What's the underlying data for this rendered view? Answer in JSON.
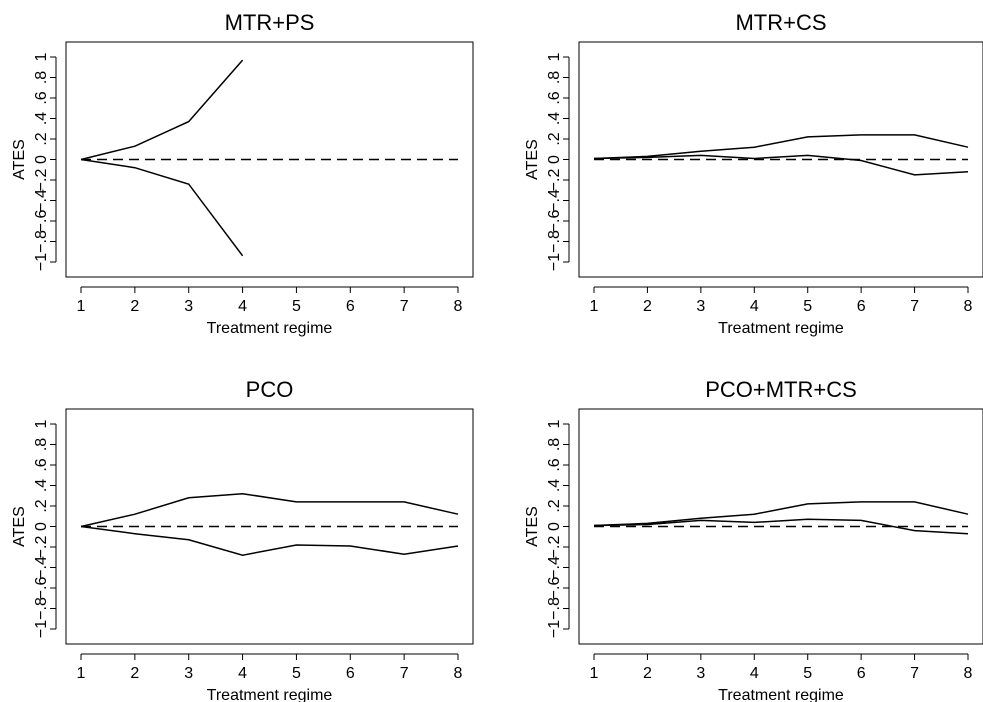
{
  "chart_data": [
    {
      "type": "line",
      "title": "MTR+PS",
      "xlabel": "Treatment regime",
      "ylabel": "ATES",
      "xlim": [
        1,
        8
      ],
      "ylim": [
        -1,
        1
      ],
      "x_ticks": [
        "1",
        "2",
        "3",
        "4",
        "5",
        "6",
        "7",
        "8"
      ],
      "y_ticks": [
        "−1",
        "−.8",
        "−.6",
        "−.4",
        "−.2",
        "0",
        ".2",
        ".4",
        ".6",
        ".8",
        "1"
      ],
      "grid": false,
      "series": [
        {
          "style": "solid",
          "x": [
            1,
            2,
            3,
            4
          ],
          "values": [
            0,
            0.13,
            0.37,
            0.97
          ]
        },
        {
          "style": "solid",
          "x": [
            1,
            2,
            3,
            4
          ],
          "values": [
            0,
            -0.08,
            -0.24,
            -0.94
          ]
        },
        {
          "style": "dashed",
          "x": [
            1,
            8
          ],
          "values": [
            0,
            0
          ]
        }
      ]
    },
    {
      "type": "line",
      "title": "MTR+CS",
      "xlabel": "Treatment regime",
      "ylabel": "ATES",
      "xlim": [
        1,
        8
      ],
      "ylim": [
        -1,
        1
      ],
      "x_ticks": [
        "1",
        "2",
        "3",
        "4",
        "5",
        "6",
        "7",
        "8"
      ],
      "y_ticks": [
        "−1",
        "−.8",
        "−.6",
        "−.4",
        "−.2",
        "0",
        ".2",
        ".4",
        ".6",
        ".8",
        "1"
      ],
      "grid": false,
      "series": [
        {
          "style": "solid",
          "x": [
            1,
            2,
            3,
            4,
            5,
            6,
            7,
            8
          ],
          "values": [
            0.01,
            0.03,
            0.08,
            0.12,
            0.22,
            0.24,
            0.24,
            0.12
          ]
        },
        {
          "style": "solid",
          "x": [
            1,
            2,
            3,
            4,
            5,
            6,
            7,
            8
          ],
          "values": [
            0.01,
            0.02,
            0.04,
            0.01,
            0.04,
            -0.01,
            -0.15,
            -0.12
          ]
        },
        {
          "style": "dashed",
          "x": [
            1,
            8
          ],
          "values": [
            0,
            0
          ]
        }
      ]
    },
    {
      "type": "line",
      "title": "PCO",
      "xlabel": "Treatment regime",
      "ylabel": "ATES",
      "xlim": [
        1,
        8
      ],
      "ylim": [
        -1,
        1
      ],
      "x_ticks": [
        "1",
        "2",
        "3",
        "4",
        "5",
        "6",
        "7",
        "8"
      ],
      "y_ticks": [
        "−1",
        "−.8",
        "−.6",
        "−.4",
        "−.2",
        "0",
        ".2",
        ".4",
        ".6",
        ".8",
        "1"
      ],
      "grid": false,
      "series": [
        {
          "style": "solid",
          "x": [
            1,
            2,
            3,
            4,
            5,
            6,
            7,
            8
          ],
          "values": [
            0,
            0.12,
            0.28,
            0.32,
            0.24,
            0.24,
            0.24,
            0.12
          ]
        },
        {
          "style": "solid",
          "x": [
            1,
            2,
            3,
            4,
            5,
            6,
            7,
            8
          ],
          "values": [
            0,
            -0.07,
            -0.13,
            -0.28,
            -0.18,
            -0.19,
            -0.27,
            -0.19
          ]
        },
        {
          "style": "dashed",
          "x": [
            1,
            8
          ],
          "values": [
            0,
            0
          ]
        }
      ]
    },
    {
      "type": "line",
      "title": "PCO+MTR+CS",
      "xlabel": "Treatment regime",
      "ylabel": "ATES",
      "xlim": [
        1,
        8
      ],
      "ylim": [
        -1,
        1
      ],
      "x_ticks": [
        "1",
        "2",
        "3",
        "4",
        "5",
        "6",
        "7",
        "8"
      ],
      "y_ticks": [
        "−1",
        "−.8",
        "−.6",
        "−.4",
        "−.2",
        "0",
        ".2",
        ".4",
        ".6",
        ".8",
        "1"
      ],
      "grid": false,
      "series": [
        {
          "style": "solid",
          "x": [
            1,
            2,
            3,
            4,
            5,
            6,
            7,
            8
          ],
          "values": [
            0.01,
            0.03,
            0.08,
            0.12,
            0.22,
            0.24,
            0.24,
            0.12
          ]
        },
        {
          "style": "solid",
          "x": [
            1,
            2,
            3,
            4,
            5,
            6,
            7,
            8
          ],
          "values": [
            0.01,
            0.02,
            0.06,
            0.04,
            0.07,
            0.06,
            -0.04,
            -0.07
          ]
        },
        {
          "style": "dashed",
          "x": [
            1,
            8
          ],
          "values": [
            0,
            0
          ]
        }
      ]
    }
  ]
}
